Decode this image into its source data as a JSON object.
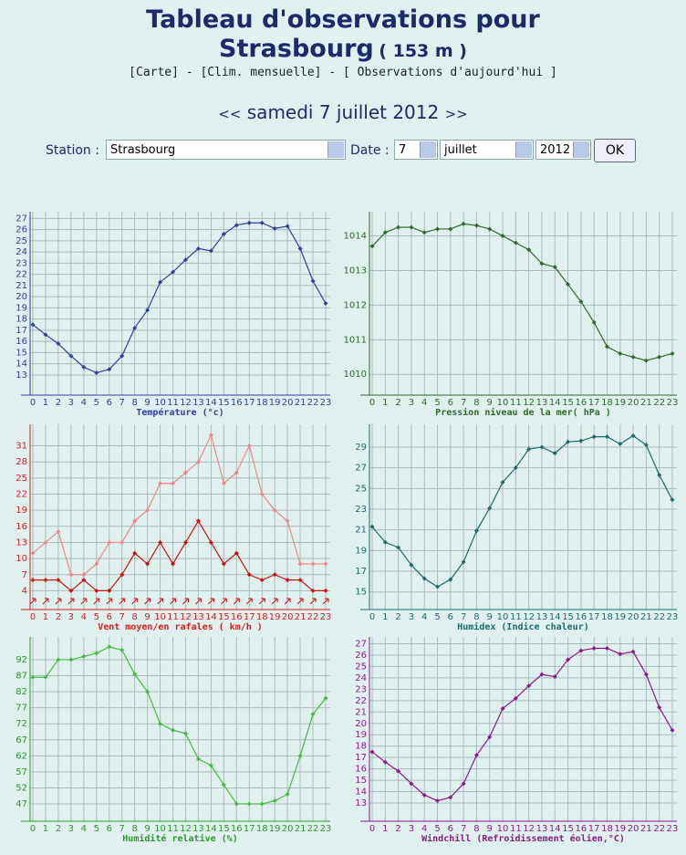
{
  "header": {
    "title": "Tableau d'observations pour",
    "city": "Strasbourg",
    "altitude": "( 153 m )",
    "links": [
      "[Carte]",
      "-",
      "[Clim. mensuelle]",
      "-",
      "[ Observations d'aujourd'hui ]"
    ]
  },
  "date_nav": {
    "prev": "<<",
    "date": "samedi 7 juillet 2012",
    "next": ">>"
  },
  "form": {
    "station_label": "Station :",
    "station": "Strasbourg",
    "date_label": "Date :",
    "day": "7",
    "month": "juillet",
    "year": "2012",
    "button": "OK"
  },
  "chart_data": [
    {
      "type": "line",
      "title": "Température (°c)",
      "categories": [
        0,
        1,
        2,
        3,
        4,
        5,
        6,
        7,
        8,
        9,
        10,
        11,
        12,
        13,
        14,
        15,
        16,
        17,
        18,
        19,
        20,
        21,
        22,
        23
      ],
      "series": [
        {
          "color": "#3040a0",
          "values": [
            17.5,
            16.6,
            15.8,
            14.7,
            13.7,
            13.2,
            13.5,
            14.7,
            17.2,
            18.8,
            21.3,
            22.2,
            23.3,
            24.3,
            24.1,
            25.6,
            26.4,
            26.6,
            26.6,
            26.1,
            26.3,
            24.3,
            21.4,
            19.4
          ]
        }
      ],
      "ylim": [
        11.2,
        27.6
      ],
      "yticks": [
        13,
        14,
        15,
        16,
        17,
        18,
        19,
        20,
        21,
        22,
        23,
        24,
        25,
        26,
        27
      ],
      "axis_color": "#3040a0",
      "grid": true
    },
    {
      "type": "line",
      "title": "Pression niveau de la mer( hPa )",
      "categories": [
        0,
        1,
        2,
        3,
        4,
        5,
        6,
        7,
        8,
        9,
        10,
        11,
        12,
        13,
        14,
        15,
        16,
        17,
        18,
        19,
        20,
        21,
        22,
        23
      ],
      "series": [
        {
          "color": "#2d6b2d",
          "values": [
            1013.7,
            1014.1,
            1014.25,
            1014.25,
            1014.1,
            1014.2,
            1014.2,
            1014.35,
            1014.3,
            1014.2,
            1014.0,
            1013.8,
            1013.6,
            1013.2,
            1013.1,
            1012.6,
            1012.1,
            1011.5,
            1010.8,
            1010.6,
            1010.5,
            1010.4,
            1010.5,
            1010.6
          ]
        }
      ],
      "ylim": [
        1009.4,
        1014.7
      ],
      "yticks": [
        1010,
        1011,
        1012,
        1013,
        1014
      ],
      "axis_color": "#2d6b2d",
      "grid": true
    },
    {
      "type": "line",
      "title": "Vent moyen/en rafales ( km/h )",
      "categories": [
        0,
        1,
        2,
        3,
        4,
        5,
        6,
        7,
        8,
        9,
        10,
        11,
        12,
        13,
        14,
        15,
        16,
        17,
        18,
        19,
        20,
        21,
        22,
        23
      ],
      "series": [
        {
          "color": "#f08888",
          "values": [
            11,
            13,
            15,
            7,
            7,
            9,
            13,
            13,
            17,
            19,
            24,
            24,
            26,
            28,
            33,
            24,
            26,
            31,
            22,
            19,
            17,
            9,
            9,
            9
          ]
        },
        {
          "color": "#cc1111",
          "values": [
            6,
            6,
            6,
            4,
            6,
            4,
            4,
            7,
            11,
            9,
            13,
            9,
            13,
            17,
            13,
            9,
            11,
            7,
            6,
            7,
            6,
            6,
            4,
            4
          ]
        }
      ],
      "ylim": [
        0.5,
        35
      ],
      "yticks": [
        4,
        7,
        10,
        13,
        16,
        19,
        22,
        25,
        28,
        31
      ],
      "axis_color": "#d02020",
      "grid": true
    },
    {
      "type": "line",
      "title": "Humidex (Indice chaleur)",
      "categories": [
        0,
        1,
        2,
        3,
        4,
        5,
        6,
        7,
        8,
        9,
        10,
        11,
        12,
        13,
        14,
        15,
        16,
        17,
        18,
        19,
        20,
        21,
        22,
        23
      ],
      "series": [
        {
          "color": "#1d6b6b",
          "values": [
            21.3,
            19.8,
            19.3,
            17.6,
            16.3,
            15.5,
            16.2,
            17.9,
            20.9,
            23.1,
            25.6,
            27.0,
            28.8,
            29.0,
            28.4,
            29.5,
            29.6,
            30.0,
            30.0,
            29.3,
            30.1,
            29.2,
            26.3,
            23.9
          ]
        }
      ],
      "ylim": [
        13.3,
        31.2
      ],
      "yticks": [
        15,
        17,
        19,
        21,
        23,
        25,
        27,
        29
      ],
      "axis_color": "#1d6b6b",
      "grid": true
    },
    {
      "type": "line",
      "title": "Humidité relative (%)",
      "categories": [
        0,
        1,
        2,
        3,
        4,
        5,
        6,
        7,
        8,
        9,
        10,
        11,
        12,
        13,
        14,
        15,
        16,
        17,
        18,
        19,
        20,
        21,
        22,
        23
      ],
      "series": [
        {
          "color": "#44bb44",
          "values": [
            86.5,
            86.5,
            92,
            92,
            93,
            94,
            96,
            95,
            87.5,
            82,
            72,
            70,
            69,
            61,
            59,
            53,
            47,
            47,
            47,
            48,
            50,
            62,
            75,
            80
          ]
        }
      ],
      "ylim": [
        41.6,
        99.1
      ],
      "yticks": [
        47,
        52,
        57,
        62,
        67,
        72,
        77,
        82,
        87,
        92
      ],
      "axis_color": "#2a9a2a",
      "grid": true
    },
    {
      "type": "line",
      "title": "Windchill (Refroidissement éolien,°C)",
      "categories": [
        0,
        1,
        2,
        3,
        4,
        5,
        6,
        7,
        8,
        9,
        10,
        11,
        12,
        13,
        14,
        15,
        16,
        17,
        18,
        19,
        20,
        21,
        22,
        23
      ],
      "series": [
        {
          "color": "#8b1a8b",
          "values": [
            17.5,
            16.6,
            15.8,
            14.7,
            13.7,
            13.2,
            13.5,
            14.7,
            17.2,
            18.8,
            21.3,
            22.2,
            23.3,
            24.3,
            24.1,
            25.6,
            26.4,
            26.6,
            26.6,
            26.1,
            26.3,
            24.3,
            21.4,
            19.4
          ]
        }
      ],
      "ylim": [
        11.4,
        27.6
      ],
      "yticks": [
        13,
        14,
        15,
        16,
        17,
        18,
        19,
        20,
        21,
        22,
        23,
        24,
        25,
        26,
        27
      ],
      "axis_color": "#8b1a8b",
      "grid": true
    }
  ]
}
